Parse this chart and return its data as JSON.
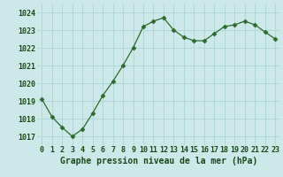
{
  "x": [
    0,
    1,
    2,
    3,
    4,
    5,
    6,
    7,
    8,
    9,
    10,
    11,
    12,
    13,
    14,
    15,
    16,
    17,
    18,
    19,
    20,
    21,
    22,
    23
  ],
  "y": [
    1019.1,
    1018.1,
    1017.5,
    1017.0,
    1017.4,
    1018.3,
    1019.3,
    1020.1,
    1021.0,
    1022.0,
    1023.2,
    1023.5,
    1023.7,
    1023.0,
    1022.6,
    1022.4,
    1022.4,
    1022.8,
    1023.2,
    1023.3,
    1023.5,
    1023.3,
    1022.9,
    1022.5
  ],
  "line_color": "#2d6a2d",
  "marker": "D",
  "marker_size": 2.5,
  "bg_color": "#cce8e8",
  "grid_color": "#b0d8d8",
  "xlabel": "Graphe pression niveau de la mer (hPa)",
  "xlabel_color": "#1a4a1a",
  "xlabel_fontsize": 7.0,
  "tick_color": "#1a4a1a",
  "tick_fontsize": 6.0,
  "ylim": [
    1016.5,
    1024.5
  ],
  "yticks": [
    1017,
    1018,
    1019,
    1020,
    1021,
    1022,
    1023,
    1024
  ],
  "xlim": [
    -0.5,
    23.5
  ],
  "xticks": [
    0,
    1,
    2,
    3,
    4,
    5,
    6,
    7,
    8,
    9,
    10,
    11,
    12,
    13,
    14,
    15,
    16,
    17,
    18,
    19,
    20,
    21,
    22,
    23
  ],
  "line_width": 0.9
}
